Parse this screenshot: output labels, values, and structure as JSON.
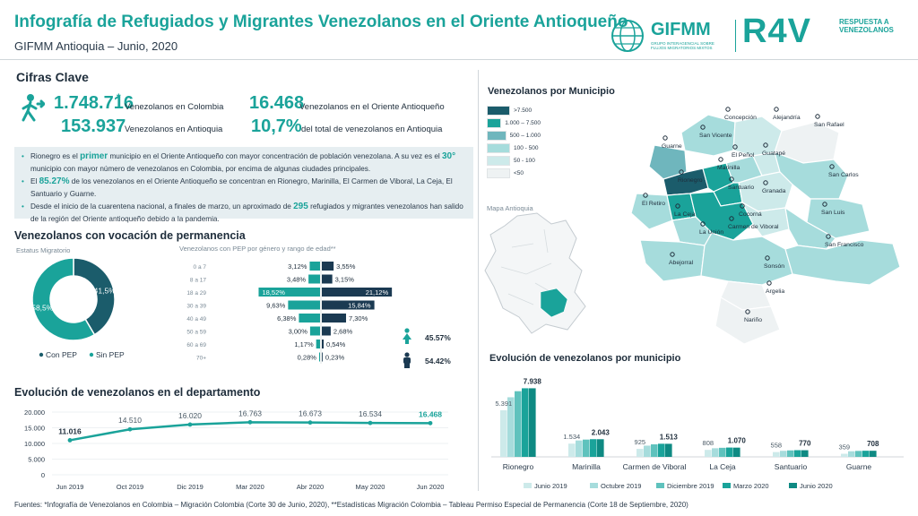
{
  "header": {
    "title": "Infografía de Refugiados y Migrantes Venezolanos en el Oriente Antioqueño",
    "subtitle": "GIFMM Antioquia – Junio, 2020",
    "logo_gifmm": "GIFMM",
    "logo_gifmm_sub": "GRUPO INTERAGENCIAL SOBRE FLUJOS MIGRATORIOS MIXTOS",
    "logo_r4v": "R4V",
    "logo_r4v_sub": "RESPUESTA A VENEZOLANOS"
  },
  "cifras": {
    "title": "Cifras Clave",
    "n1": "1.748.716",
    "n1_mark": "*",
    "l1": "Venezolanos en Colombia",
    "n2": "16.468",
    "l2": "Venezolanos en el Oriente Antioqueño",
    "n3": "153.937",
    "l3": "Venezolanos en Antioquia",
    "n4": "10,7%",
    "l4": "del total de venezolanos en Antioquia"
  },
  "notes": {
    "b1a": "Rionegro es el ",
    "b1b": "primer",
    "b1c": " municipio en el Oriente Antioqueño con mayor concentración de población venezolana. A su vez es el ",
    "b1d": "30°",
    "b1e": " municipio con mayor número de venezolanos en Colombia, por encima de algunas ciudades principales.",
    "b2a": "El ",
    "b2b": "85.27%",
    "b2c": " de los venezolanos en el Oriente Antioqueño se concentran en Rionegro, Marinilla, El Carmen de Viboral, La Ceja, El Santuario y Guarne.",
    "b3a": "Desde el inicio de la cuarentena nacional, a finales de marzo, un aproximado de ",
    "b3b": "295",
    "b3c": " refugiados y migrantes venezolanos han salido de la región del Oriente antioqueño debido a la pandemia."
  },
  "permanencia": {
    "title": "Venezolanos con vocación de permanencia",
    "estatus_label": "Estatus Migratorio",
    "pyramid_label": "Venezolanos con PEP por género y rango de edad**",
    "pie_legend": [
      "Con PEP",
      "Sin PEP"
    ],
    "female_pct": "45.57%",
    "male_pct": "54.42%"
  },
  "evolucion_depto_title": "Evolución de venezolanos en el departamento",
  "municipio_title": "Venezolanos por Municipio",
  "mapa_antioquia_label": "Mapa Antioquia",
  "map_legend": [
    {
      "label": ">7.500",
      "color": "#1b5c6b"
    },
    {
      "label": "1.000 – 7.500",
      "color": "#1aa39a"
    },
    {
      "label": "500 – 1.000",
      "color": "#6fb6bd"
    },
    {
      "label": "100 - 500",
      "color": "#a6dcdc"
    },
    {
      "label": "50 - 100",
      "color": "#cdeaea"
    },
    {
      "label": "<50",
      "color": "#eef2f3"
    }
  ],
  "map_towns": [
    "Concepción",
    "Alejandría",
    "San Rafael",
    "San Vicente",
    "Guarne",
    "El Peñol",
    "Guatapé",
    "Marinilla",
    "Rionegro",
    "Santuario",
    "Granada",
    "San Carlos",
    "El Retiro",
    "Cocorná",
    "La Ceja",
    "Carmen de Viboral",
    "San Luis",
    "La Unión",
    "Abejorral",
    "Sonsón",
    "San Francisco",
    "Argelia",
    "Nariño"
  ],
  "evolucion_muni_title": "Evolución de venezolanos por municipio",
  "footer": "Fuentes: *Infografía de Venezolanos en Colombia – Migración Colombia (Corte 30 de Junio, 2020), **Estadísticas Migración Colombia – Tableau Permiso Especial de Permanencia (Corte 18 de Septiembre, 2020)",
  "chart_data": [
    {
      "type": "pie",
      "title": "Estatus Migratorio",
      "categories": [
        "Con PEP",
        "Sin PEP"
      ],
      "values": [
        41.5,
        58.5
      ],
      "value_labels": [
        "41,5%",
        "58,5%"
      ],
      "colors": [
        "#1b5c6b",
        "#1aa39a"
      ],
      "legend": "bottom"
    },
    {
      "type": "bar",
      "title": "Venezolanos con PEP por género y rango de edad**",
      "orientation": "horizontal",
      "categories": [
        "0 a 7",
        "8 a 17",
        "18 a 29",
        "30 a 39",
        "40 a 49",
        "50 a 59",
        "60 a 69",
        "70+"
      ],
      "series": [
        {
          "values": [
            3.12,
            3.48,
            18.52,
            9.63,
            6.38,
            3.0,
            1.17,
            0.28
          ],
          "labels": [
            "3,12%",
            "3,48%",
            "18,52%",
            "9,63%",
            "6,38%",
            "3,00%",
            "1,17%",
            "0,28%"
          ],
          "color": "#1aa39a"
        },
        {
          "values": [
            3.55,
            3.15,
            21.12,
            15.84,
            7.3,
            2.68,
            0.54,
            0.23
          ],
          "labels": [
            "3,55%",
            "3,15%",
            "21,12%",
            "15,84%",
            "7,30%",
            "2,68%",
            "0,54%",
            "0,23%"
          ],
          "color": "#1b3a52"
        }
      ]
    },
    {
      "type": "line",
      "title": "Evolución de venezolanos en el departamento",
      "x": [
        "Jun 2019",
        "Oct 2019",
        "Dic 2019",
        "Mar 2020",
        "Abr 2020",
        "May 2020",
        "Jun 2020"
      ],
      "y": [
        11016,
        14510,
        16020,
        16763,
        16673,
        16534,
        16468
      ],
      "labels": [
        "11.016",
        "14.510",
        "16.020",
        "16.763",
        "16.673",
        "16.534",
        "16.468"
      ],
      "yticks": [
        "0",
        "5.000",
        "10.000",
        "15.000",
        "20.000"
      ],
      "ylim": [
        0,
        20000
      ],
      "color": "#1aa39a"
    },
    {
      "type": "bar",
      "title": "Evolución de venezolanos por municipio",
      "categories": [
        "Rionegro",
        "Marinilla",
        "Carmen de Viboral",
        "La Ceja",
        "Santuario",
        "Guarne"
      ],
      "series": [
        {
          "name": "Junio 2019",
          "values": [
            5391,
            1534,
            925,
            808,
            558,
            359
          ],
          "color": "#cdeaea"
        },
        {
          "name": "Octubre 2019",
          "values": [
            6900,
            1900,
            1300,
            1000,
            700,
            650
          ],
          "color": "#a6dcdc"
        },
        {
          "name": "Diciembre 2019",
          "values": [
            7600,
            2000,
            1450,
            1050,
            750,
            690
          ],
          "color": "#5fc2bd"
        },
        {
          "name": "Marzo 2020",
          "values": [
            7938,
            2050,
            1520,
            1080,
            775,
            710
          ],
          "color": "#1aa39a"
        },
        {
          "name": "Junio 2020",
          "values": [
            7938,
            2043,
            1513,
            1070,
            770,
            708
          ],
          "color": "#0f8a83"
        }
      ],
      "first_labels": [
        "5.391",
        "1.534",
        "925",
        "808",
        "558",
        "359"
      ],
      "last_labels": [
        "7.938",
        "2.043",
        "1.513",
        "1.070",
        "770",
        "708"
      ],
      "ylim": [
        0,
        8500
      ],
      "legend": "bottom"
    }
  ]
}
